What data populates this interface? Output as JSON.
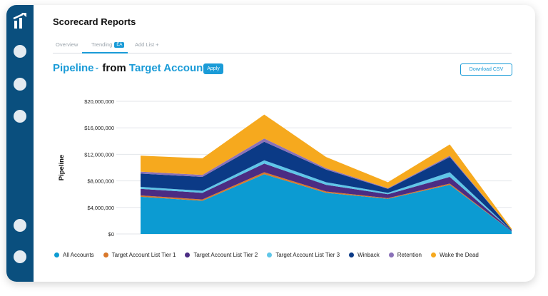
{
  "app": {
    "title": "Scorecard Reports"
  },
  "sidebar": {
    "logo_icon": "chart-bars-logo-icon",
    "nav_items": 6
  },
  "tabs": [
    {
      "label": "Overview",
      "active": false
    },
    {
      "label": "Trending",
      "active": true,
      "badge": "EA"
    },
    {
      "label": "Add List +",
      "active": false
    }
  ],
  "header": {
    "metric": "Pipeline",
    "from_word": "from",
    "source": "Target Accounts",
    "apply_label": "Apply",
    "download_label": "Download CSV"
  },
  "colors": {
    "accent": "#1a9bd7",
    "sidebar": "#0a4f7e"
  },
  "chart_data": {
    "type": "area",
    "stacked": true,
    "ylabel": "Pipeline",
    "xlabel": "",
    "ylim": [
      0,
      20000000
    ],
    "yticks": [
      "$0",
      "$4,000,000",
      "$8,000,000",
      "$12,000,000",
      "$16,000,000",
      "$20,000,000"
    ],
    "ytick_values": [
      0,
      4000000,
      8000000,
      12000000,
      16000000,
      20000000
    ],
    "grid": true,
    "legend_position": "bottom",
    "x": [
      1,
      2,
      3,
      4,
      5,
      6,
      7
    ],
    "series": [
      {
        "name": "All Accounts",
        "color": "#0c9bd2",
        "values": [
          5600000,
          5000000,
          9000000,
          6200000,
          5300000,
          7400000,
          400000
        ]
      },
      {
        "name": "Target Account List Tier 1",
        "color": "#d9782a",
        "values": [
          200000,
          200000,
          300000,
          200000,
          100000,
          200000,
          0
        ]
      },
      {
        "name": "Target Account List Tier 2",
        "color": "#4b2c83",
        "values": [
          1000000,
          1000000,
          1300000,
          1000000,
          600000,
          1000000,
          100000
        ]
      },
      {
        "name": "Target Account List Tier 3",
        "color": "#5fc6e8",
        "values": [
          300000,
          300000,
          500000,
          400000,
          200000,
          700000,
          0
        ]
      },
      {
        "name": "Winback",
        "color": "#0b3a86",
        "values": [
          2000000,
          2100000,
          2800000,
          1900000,
          600000,
          2300000,
          100000
        ]
      },
      {
        "name": "Retention",
        "color": "#8a71b8",
        "values": [
          300000,
          300000,
          500000,
          200000,
          100000,
          200000,
          0
        ]
      },
      {
        "name": "Wake the Dead",
        "color": "#f6a91e",
        "values": [
          2400000,
          2500000,
          3600000,
          1700000,
          900000,
          1700000,
          200000
        ]
      }
    ]
  }
}
